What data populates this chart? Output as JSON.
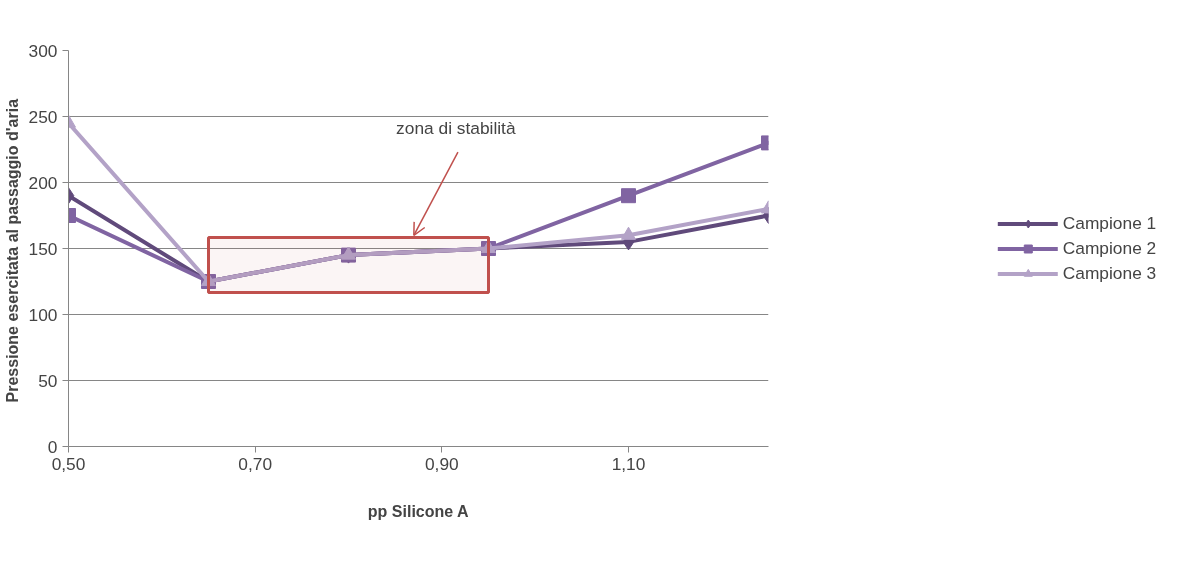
{
  "chart_data": {
    "type": "line",
    "xlabel": "pp Silicone A",
    "ylabel": "Pressione esercitata  al passaggio d'aria",
    "x": [
      0.5,
      0.65,
      0.8,
      0.95,
      1.1,
      1.25
    ],
    "series": [
      {
        "name": "Campione 1",
        "color": "#604a7b",
        "marker": "diamond",
        "values": [
          190,
          125,
          145,
          150,
          155,
          175
        ]
      },
      {
        "name": "Campione 2",
        "color": "#8064a2",
        "marker": "square",
        "values": [
          175,
          125,
          145,
          150,
          190,
          230
        ]
      },
      {
        "name": "Campione 3",
        "color": "#b3a2c7",
        "marker": "triangle",
        "values": [
          245,
          125,
          145,
          150,
          160,
          180
        ]
      }
    ],
    "xlim": [
      0.5,
      1.25
    ],
    "xticks": [
      {
        "value": 0.5,
        "label": "0,50"
      },
      {
        "value": 0.7,
        "label": "0,70"
      },
      {
        "value": 0.9,
        "label": "0,90"
      },
      {
        "value": 1.1,
        "label": "1,10"
      }
    ],
    "ylim": [
      0,
      300
    ],
    "yticks": [
      0,
      50,
      100,
      150,
      200,
      250,
      300
    ],
    "grid": "y",
    "legend": "right",
    "line_style": "solid",
    "bands": [
      {
        "axis": "x",
        "from": 0.65,
        "to": 0.95,
        "label": null,
        "color": "#c0504d"
      }
    ],
    "annotations": [
      {
        "text": "zona di stabilità",
        "x": 0.87,
        "y": 160
      }
    ]
  }
}
